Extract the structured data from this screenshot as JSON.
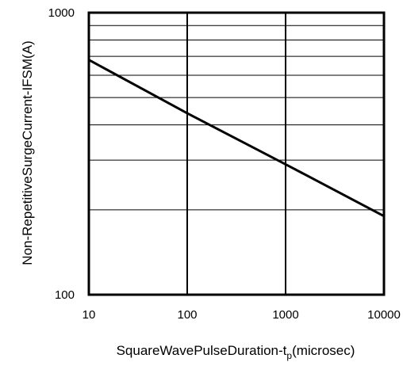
{
  "chart_data": {
    "type": "line",
    "title": "",
    "xlabel": "SquareWavePulseDuration-t",
    "xlabel_subscript": "p",
    "xlabel_unit": "(microsec)",
    "ylabel": "Non-RepetitiveSurgeCurrent-IFSM(A)",
    "x_scale": "log",
    "y_scale": "log",
    "xlim": [
      10,
      10000
    ],
    "ylim": [
      100,
      1000
    ],
    "x_ticks": [
      "10",
      "100",
      "1000",
      "10000"
    ],
    "y_ticks": [
      "100",
      "1000"
    ],
    "grid": true,
    "series": [
      {
        "x": [
          10,
          100,
          1000,
          10000
        ],
        "values": [
          680,
          440,
          290,
          190
        ]
      }
    ]
  }
}
